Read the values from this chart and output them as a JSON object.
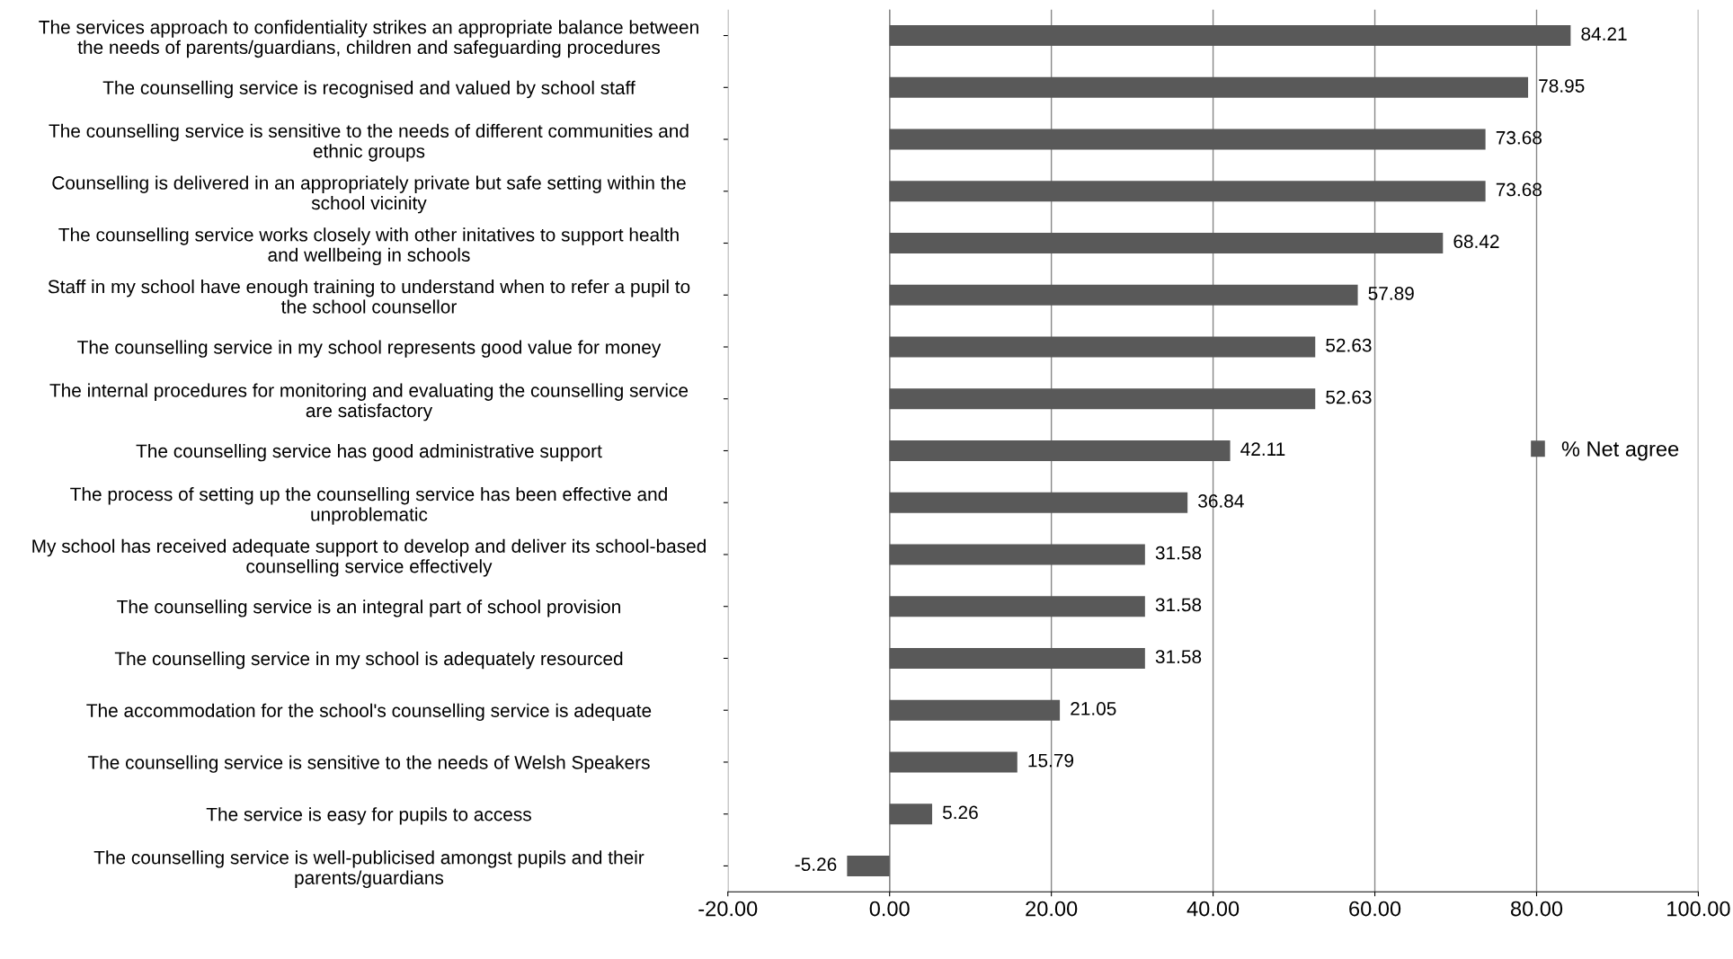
{
  "chart_data": {
    "type": "bar",
    "orientation": "horizontal",
    "categories": [
      "The services approach to confidentiality strikes an appropriate balance between the needs of parents/guardians, children and safeguarding procedures",
      "The counselling service is recognised and valued by school staff",
      "The counselling service is sensitive to the needs of different communities and ethnic groups",
      "Counselling is delivered in an appropriately private but safe setting within the school vicinity",
      "The counselling service works closely with other initatives to support health and wellbeing in schools",
      "Staff in my school have enough training to understand when to refer a pupil to the school counsellor",
      "The counselling service in my school represents good value for money",
      "The internal procedures for monitoring and evaluating the counselling service are satisfactory",
      "The counselling service has good administrative support",
      "The process of setting up the counselling service has been effective and unproblematic",
      "My school has received adequate support to develop and deliver its school-based counselling service effectively",
      "The counselling service is an integral part of school provision",
      "The counselling service in my school is adequately resourced",
      "The accommodation for the school's counselling service is adequate",
      "The counselling service is sensitive to the needs of Welsh Speakers",
      "The service is easy for pupils to access",
      "The counselling service is well-publicised amongst pupils and their parents/guardians"
    ],
    "series": [
      {
        "name": "% Net agree",
        "color": "#595959",
        "values": [
          84.21,
          78.95,
          73.68,
          73.68,
          68.42,
          57.89,
          52.63,
          52.63,
          42.11,
          36.84,
          31.58,
          31.58,
          31.58,
          21.05,
          15.79,
          5.26,
          -5.26
        ]
      }
    ],
    "data_labels": true,
    "xlim": [
      -20,
      100
    ],
    "xticks": [
      {
        "value": -20,
        "label": "-20.00"
      },
      {
        "value": 0,
        "label": "0.00"
      },
      {
        "value": 20,
        "label": "20.00"
      },
      {
        "value": 40,
        "label": "40.00"
      },
      {
        "value": 60,
        "label": "60.00"
      },
      {
        "value": 80,
        "label": "80.00"
      },
      {
        "value": 100,
        "label": "100.00"
      }
    ],
    "grid": "x",
    "legend": "right"
  }
}
